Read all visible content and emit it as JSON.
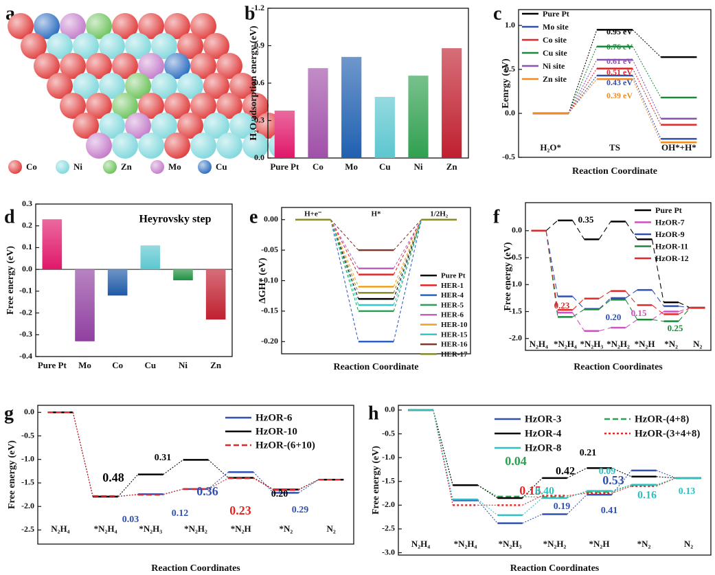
{
  "panel_a": {
    "label": "a",
    "legend": [
      {
        "name": "Co",
        "color": "#e03c3c"
      },
      {
        "name": "Ni",
        "color": "#7fd8dc"
      },
      {
        "name": "Zn",
        "color": "#6cc25a"
      },
      {
        "name": "Mo",
        "color": "#c37ac9"
      },
      {
        "name": "Cu",
        "color": "#2a6bc0"
      }
    ]
  },
  "chart_data": [
    {
      "type": "bar",
      "label": "b",
      "ylabel": "H₂O adsorption energy (eV)",
      "categories": [
        "Pure Pt",
        "Co",
        "Mo",
        "Cu",
        "Ni",
        "Zn"
      ],
      "values": [
        -0.38,
        -0.72,
        -0.81,
        -0.49,
        -0.66,
        -0.88
      ],
      "colors": [
        "#e0186a",
        "#a050a8",
        "#2060b0",
        "#5cc6d0",
        "#30a050",
        "#c02030"
      ],
      "ylim": [
        0,
        -1.2
      ],
      "yticks": [
        {
          "value": 0,
          "label": "0.0"
        },
        -0.3,
        -0.6,
        -0.9,
        -1.2
      ]
    },
    {
      "type": "energy_profile",
      "label": "c",
      "xlabel": "Reaction Coordinate",
      "ylabel": "Eenrgy (eV)",
      "categories": [
        "H₂O*",
        "TS",
        "OH*+H*"
      ],
      "series": [
        {
          "name": "Pure Pt",
          "color": "#000000",
          "values": [
            0,
            0.95,
            0.64
          ]
        },
        {
          "name": "Mo site",
          "color": "#2f4fa8",
          "values": [
            0,
            0.43,
            -0.29
          ]
        },
        {
          "name": "Co site",
          "color": "#e02828",
          "values": [
            0,
            0.51,
            -0.13
          ]
        },
        {
          "name": "Cu site",
          "color": "#1a8a3a",
          "values": [
            0,
            0.76,
            0.18
          ]
        },
        {
          "name": "Ni site",
          "color": "#8a4fb0",
          "values": [
            0,
            0.61,
            -0.06
          ]
        },
        {
          "name": "Zn site",
          "color": "#f08a20",
          "values": [
            0,
            0.39,
            -0.33
          ]
        }
      ],
      "ylim": [
        -0.5,
        1.18
      ],
      "yticks": [
        -0.5,
        {
          "value": 0,
          "label": "0.0"
        },
        0.5,
        {
          "value": 1,
          "label": "1.0"
        }
      ],
      "annotations": [
        {
          "text": "0.95 eV",
          "color": "#000000"
        },
        {
          "text": "0.76 eV",
          "color": "#1a8a3a"
        },
        {
          "text": "0.61 eV",
          "color": "#8a4fb0"
        },
        {
          "text": "0.51 eV",
          "color": "#e02828"
        },
        {
          "text": "0.43 eV",
          "color": "#2f4fa8"
        },
        {
          "text": "0.39 eV",
          "color": "#f08a20"
        }
      ]
    },
    {
      "type": "bar",
      "label": "d",
      "ylabel": "Free energy (eV)",
      "categories": [
        "Pure Pt",
        "Mo",
        "Co",
        "Cu",
        "Ni",
        "Zn"
      ],
      "values": [
        0.23,
        -0.33,
        -0.12,
        0.11,
        -0.05,
        -0.23
      ],
      "colors": [
        "#e0186a",
        "#9040a0",
        "#1e5aa8",
        "#5cc6d0",
        "#209040",
        "#c02030"
      ],
      "ylim": [
        -0.4,
        0.3
      ],
      "yticks": [
        -0.4,
        -0.3,
        -0.2,
        -0.1,
        {
          "value": 0,
          "label": "0.0"
        },
        0.1,
        0.2,
        0.3
      ],
      "annotations": [
        {
          "text": "Heyrovsky step",
          "color": "#000000"
        }
      ]
    },
    {
      "type": "energy_profile",
      "label": "e",
      "xlabel": "Reaction Coordinate",
      "ylabel": "ΔGH* (eV)",
      "categories": [
        "H+e⁻",
        "H*",
        "1/2H₂"
      ],
      "series": [
        {
          "name": "Pure Pt",
          "color": "#000000",
          "values": [
            0,
            -0.13,
            0
          ]
        },
        {
          "name": "HER-1",
          "color": "#e02828",
          "values": [
            0,
            -0.09,
            0
          ]
        },
        {
          "name": "HER-4",
          "color": "#2f5fc0",
          "values": [
            0,
            -0.2,
            0
          ]
        },
        {
          "name": "HER-5",
          "color": "#2aa050",
          "values": [
            0,
            -0.15,
            0
          ]
        },
        {
          "name": "HER-6",
          "color": "#c060c0",
          "values": [
            0,
            -0.08,
            0
          ]
        },
        {
          "name": "HER-10",
          "color": "#f0a020",
          "values": [
            0,
            -0.11,
            0
          ]
        },
        {
          "name": "HER-15",
          "color": "#30c8c8",
          "values": [
            0,
            -0.14,
            0
          ]
        },
        {
          "name": "HER-16",
          "color": "#7a3a2a",
          "values": [
            0,
            -0.05,
            0
          ]
        },
        {
          "name": "HER-17",
          "color": "#8a8a2a",
          "values": [
            0,
            -0.12,
            0
          ]
        }
      ],
      "ylim": [
        -0.22,
        0.02
      ],
      "yticks": [
        {
          "value": 0,
          "label": "0.00"
        },
        -0.05,
        {
          "value": -0.1,
          "label": "-0.10"
        },
        -0.15,
        {
          "value": -0.2,
          "label": "-0.20"
        }
      ]
    },
    {
      "type": "energy_profile",
      "label": "f",
      "xlabel": "Reaction Coordinates",
      "ylabel": "Free energy (eV)",
      "categories": [
        "N₂H₄",
        "*N₂H₄",
        "*N₂H₃",
        "*N₂H₂",
        "*N₂H",
        "*N₂",
        "N₂"
      ],
      "series": [
        {
          "name": "Pure Pt",
          "color": "#000000",
          "values": [
            0,
            0.19,
            -0.16,
            0.17,
            -0.16,
            -1.33,
            -1.43
          ]
        },
        {
          "name": "HzOR-7",
          "color": "#d050c0",
          "values": [
            0,
            -1.52,
            -1.86,
            -1.8,
            -1.65,
            -1.5,
            -1.43
          ]
        },
        {
          "name": "HzOR-9",
          "color": "#3050b0",
          "values": [
            0,
            -1.22,
            -1.45,
            -1.25,
            -1.1,
            -1.4,
            -1.43
          ]
        },
        {
          "name": "HzOR-11",
          "color": "#1a8a3a",
          "values": [
            0,
            -1.6,
            -1.46,
            -1.28,
            -1.65,
            -1.68,
            -1.43
          ]
        },
        {
          "name": "HzOR-12",
          "color": "#e02828",
          "values": [
            0,
            -1.47,
            -1.26,
            -1.12,
            -1.38,
            -1.55,
            -1.43
          ]
        }
      ],
      "ylim": [
        -2.22,
        0.52
      ],
      "yticks": [
        {
          "value": 0,
          "label": "0.0"
        },
        -0.5,
        {
          "value": -1,
          "label": "-1.0"
        },
        -1.5,
        {
          "value": -2,
          "label": "-2.0"
        }
      ],
      "annotations": [
        {
          "text": "0.35",
          "color": "#000000"
        },
        {
          "text": "0.23",
          "color": "#e02828"
        },
        {
          "text": "0.20",
          "color": "#3050b0"
        },
        {
          "text": "0.15",
          "color": "#d050c0"
        },
        {
          "text": "0.25",
          "color": "#1a8a3a"
        }
      ]
    },
    {
      "type": "energy_profile",
      "label": "g",
      "xlabel": "Reaction Coordinates",
      "ylabel": "Free energy (eV)",
      "categories": [
        "N₂H₄",
        "*N₂H₄",
        "*N₂H₃",
        "*N₂H₂",
        "*N₂H",
        "*N₂",
        "N₂"
      ],
      "series": [
        {
          "name": "HzOR-6",
          "color": "#3050b0",
          "values": [
            0,
            -1.79,
            -1.74,
            -1.63,
            -1.27,
            -1.71,
            -1.43
          ]
        },
        {
          "name": "HzOR-10",
          "color": "#000000",
          "values": [
            0,
            -1.79,
            -1.32,
            -1.01,
            -1.39,
            -1.64,
            -1.43
          ]
        },
        {
          "name": "HzOR-(6+10)",
          "color": "#e02828",
          "dash": "dashed",
          "values": [
            0,
            -1.78,
            -1.75,
            -1.63,
            -1.4,
            -1.65,
            -1.43
          ]
        }
      ],
      "ylim": [
        -2.8,
        0.15
      ],
      "yticks": [
        {
          "value": 0,
          "label": "0.0"
        },
        -0.5,
        {
          "value": -1,
          "label": "-1.0"
        },
        -1.5,
        {
          "value": -2,
          "label": "-2.0"
        },
        -2.5
      ],
      "annotations": [
        {
          "text": "0.48",
          "color": "#000000"
        },
        {
          "text": "0.31",
          "color": "#000000"
        },
        {
          "text": "0.03",
          "color": "#3050b0"
        },
        {
          "text": "0.12",
          "color": "#3050b0"
        },
        {
          "text": "0.36",
          "color": "#3050b0"
        },
        {
          "text": "0.23",
          "color": "#e02828"
        },
        {
          "text": "0.20",
          "color": "#000000"
        },
        {
          "text": "0.29",
          "color": "#3050b0"
        }
      ]
    },
    {
      "type": "energy_profile",
      "label": "h",
      "xlabel": "Reaction Coordinates",
      "ylabel": "Free energy (eV)",
      "categories": [
        "N₂H₄",
        "*N₂H₄",
        "*N₂H₃",
        "*N₂H₂",
        "*N₂H",
        "*N₂",
        "N₂"
      ],
      "series": [
        {
          "name": "HzOR-3",
          "color": "#3050b0",
          "values": [
            0,
            -1.9,
            -2.38,
            -2.19,
            -1.78,
            -1.27,
            -1.43
          ]
        },
        {
          "name": "HzOR-(4+8)",
          "color": "#2aa050",
          "dash": "dashed",
          "values": [
            0,
            -1.58,
            -1.82,
            -1.83,
            -1.72,
            -1.58,
            -1.43
          ]
        },
        {
          "name": "HzOR-4",
          "color": "#000000",
          "values": [
            0,
            -1.58,
            -1.85,
            -1.43,
            -1.22,
            -1.4,
            -1.43
          ]
        },
        {
          "name": "HzOR-(3+4+8)",
          "color": "#e02828",
          "dash": "dotted",
          "values": [
            0,
            -2.0,
            -2.0,
            -1.8,
            -1.75,
            -1.6,
            -1.43
          ]
        },
        {
          "name": "HzOR-8",
          "color": "#30c0c0",
          "values": [
            0,
            -1.88,
            -2.21,
            -1.85,
            -1.7,
            -1.57,
            -1.43
          ]
        }
      ],
      "ylim": [
        -3.05,
        0.1
      ],
      "yticks": [
        {
          "value": 0,
          "label": "0.0"
        },
        -0.5,
        {
          "value": -1,
          "label": "-1.0"
        },
        -1.5,
        {
          "value": -2,
          "label": "-2.0"
        },
        -2.5,
        {
          "value": -3,
          "label": "-3.0"
        }
      ],
      "annotations": [
        {
          "text": "0.04",
          "color": "#2aa050"
        },
        {
          "text": "0.21",
          "color": "#000000"
        },
        {
          "text": "0.42",
          "color": "#000000"
        },
        {
          "text": "0.09",
          "color": "#30c0c0"
        },
        {
          "text": "0.53",
          "color": "#3050b0"
        },
        {
          "text": "0.15",
          "color": "#e02828"
        },
        {
          "text": "0.40",
          "color": "#30c0c0"
        },
        {
          "text": "0.16",
          "color": "#30c0c0"
        },
        {
          "text": "0.13",
          "color": "#30c0c0"
        },
        {
          "text": "0.19",
          "color": "#3050b0"
        },
        {
          "text": "0.41",
          "color": "#3050b0"
        }
      ]
    }
  ]
}
